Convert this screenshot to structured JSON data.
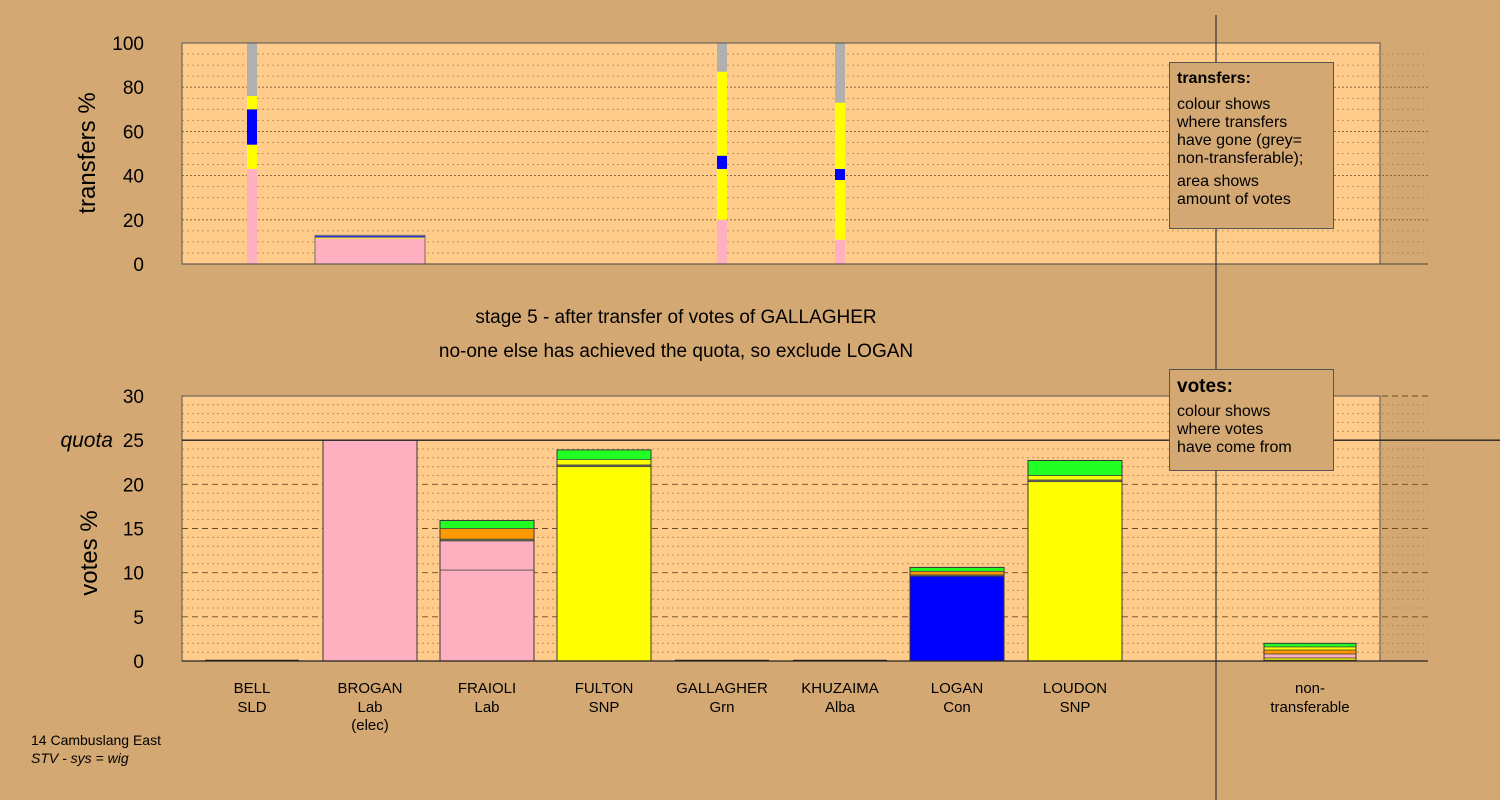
{
  "colors": {
    "background": "#d4a873",
    "plot_area": "#ffcc8c",
    "Lab": "#ffb0c0",
    "SNP": "#ffff00",
    "Con": "#0000ff",
    "Grn": "#22ff22",
    "SLD": "#ff9900",
    "Alba": "#6f6f4f",
    "non-transferable": "#b0b0b0"
  },
  "stage_text": {
    "line1": "stage 5 - after transfer of votes of GALLAGHER",
    "line2": "no-one else has achieved the quota, so exclude LOGAN"
  },
  "legend_transfers": {
    "title": "transfers:",
    "lines1": [
      "colour shows",
      "where transfers",
      "have gone (grey=",
      "non-transferable);"
    ],
    "lines2": [
      "area shows",
      "amount of votes"
    ]
  },
  "legend_votes": {
    "title": "votes:",
    "lines": [
      "colour shows",
      "where votes",
      "have come from"
    ]
  },
  "footer": {
    "line1": "14 Cambuslang East",
    "line2": "STV - sys = wig"
  },
  "chart_data": [
    {
      "type": "bar",
      "title": "",
      "ylabel": "transfers %",
      "ylim": [
        0,
        100
      ],
      "yticks": [
        0,
        20,
        40,
        60,
        80,
        100
      ],
      "description_legend": "transfers",
      "columns": [
        {
          "name": "BELL",
          "kind": "thin",
          "segments": [
            {
              "party": "Lab",
              "from": 0,
              "to": 43
            },
            {
              "party": "SNP",
              "from": 43,
              "to": 54
            },
            {
              "party": "Con",
              "from": 54,
              "to": 70
            },
            {
              "party": "SNP",
              "from": 70,
              "to": 76
            },
            {
              "party": "non-transferable",
              "from": 76,
              "to": 100
            }
          ]
        },
        {
          "name": "BROGAN",
          "kind": "surplus",
          "segments": [
            {
              "party": "Lab",
              "from": 0,
              "to": 11.5
            },
            {
              "party": "SNP",
              "from": 11.5,
              "to": 12
            },
            {
              "party": "Con",
              "from": 12,
              "to": 12.6
            },
            {
              "party": "non-transferable",
              "from": 12.6,
              "to": 13
            }
          ]
        },
        {
          "name": "GALLAGHER",
          "kind": "thin",
          "segments": [
            {
              "party": "Lab",
              "from": 0,
              "to": 20
            },
            {
              "party": "SNP",
              "from": 20,
              "to": 43
            },
            {
              "party": "Con",
              "from": 43,
              "to": 49
            },
            {
              "party": "SNP",
              "from": 49,
              "to": 87
            },
            {
              "party": "non-transferable",
              "from": 87,
              "to": 100
            }
          ]
        },
        {
          "name": "KHUZAIMA",
          "kind": "thin",
          "segments": [
            {
              "party": "Lab",
              "from": 0,
              "to": 11
            },
            {
              "party": "SNP",
              "from": 11,
              "to": 38
            },
            {
              "party": "Con",
              "from": 38,
              "to": 43
            },
            {
              "party": "SNP",
              "from": 43,
              "to": 73
            },
            {
              "party": "non-transferable",
              "from": 73,
              "to": 100
            }
          ]
        }
      ]
    },
    {
      "type": "bar",
      "stacked": true,
      "title": "",
      "ylabel": "votes %",
      "ylim": [
        0,
        30
      ],
      "yticks": [
        0,
        5,
        10,
        15,
        20,
        25,
        30
      ],
      "quota": 25,
      "quota_label": "quota",
      "candidates": [
        {
          "name": "BELL",
          "party": "SLD",
          "note": "",
          "segments": []
        },
        {
          "name": "BROGAN",
          "party": "Lab",
          "note": "(elec)",
          "segments": [
            {
              "party": "Lab",
              "value": 25
            }
          ]
        },
        {
          "name": "FRAIOLI",
          "party": "Lab",
          "note": "",
          "segments": [
            {
              "party": "Lab",
              "value": 10.3
            },
            {
              "party": "Lab",
              "value": 3.3
            },
            {
              "party": "Alba",
              "value": 0.2
            },
            {
              "party": "SLD",
              "value": 1.2
            },
            {
              "party": "Grn",
              "value": 0.9
            }
          ]
        },
        {
          "name": "FULTON",
          "party": "SNP",
          "note": "",
          "segments": [
            {
              "party": "SNP",
              "value": 22
            },
            {
              "party": "Alba",
              "value": 0.2
            },
            {
              "party": "SNP",
              "value": 0.6
            },
            {
              "party": "Grn",
              "value": 1.1
            }
          ]
        },
        {
          "name": "GALLAGHER",
          "party": "Grn",
          "note": "",
          "segments": []
        },
        {
          "name": "KHUZAIMA",
          "party": "Alba",
          "note": "",
          "segments": []
        },
        {
          "name": "LOGAN",
          "party": "Con",
          "note": "",
          "segments": [
            {
              "party": "Con",
              "value": 9.6
            },
            {
              "party": "Alba",
              "value": 0.15
            },
            {
              "party": "SLD",
              "value": 0.4
            },
            {
              "party": "Grn",
              "value": 0.45
            }
          ]
        },
        {
          "name": "LOUDON",
          "party": "SNP",
          "note": "",
          "segments": [
            {
              "party": "SNP",
              "value": 20.3
            },
            {
              "party": "Alba",
              "value": 0.2
            },
            {
              "party": "SNP",
              "value": 0.5
            },
            {
              "party": "Grn",
              "value": 1.7
            }
          ]
        },
        {
          "name": "non-",
          "party": "transferable",
          "note": "",
          "segments": [
            {
              "party": "Alba",
              "value": 0.1
            },
            {
              "party": "SNP",
              "value": 0.25
            },
            {
              "party": "Lab",
              "value": 0.45
            },
            {
              "party": "SLD",
              "value": 0.45
            },
            {
              "party": "SNP",
              "value": 0.35
            },
            {
              "party": "Grn",
              "value": 0.4
            }
          ]
        }
      ]
    }
  ]
}
